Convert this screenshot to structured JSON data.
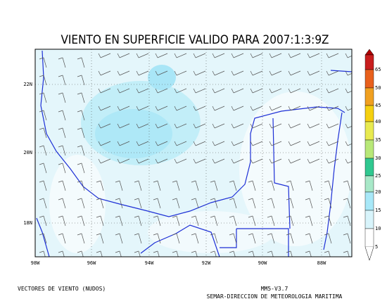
{
  "title": "VIENTO EN SUPERFICIE VALIDO PARA 2007:1:3:9Z",
  "map": {
    "lat_labels": [
      "22N",
      "20N",
      "18N"
    ],
    "lon_labels": [
      "98W",
      "96W",
      "94W",
      "92W",
      "90W",
      "88W"
    ]
  },
  "colorbar": {
    "labels": [
      65,
      50,
      45,
      40,
      35,
      30,
      25,
      20,
      15,
      10,
      5
    ]
  },
  "footer": {
    "left": "VECTORES DE VIENTO (NUDOS)",
    "model": "MM5-V3.7",
    "source": "SEMAR-DIRECCION DE METEOROLOGIA MARITIMA"
  }
}
